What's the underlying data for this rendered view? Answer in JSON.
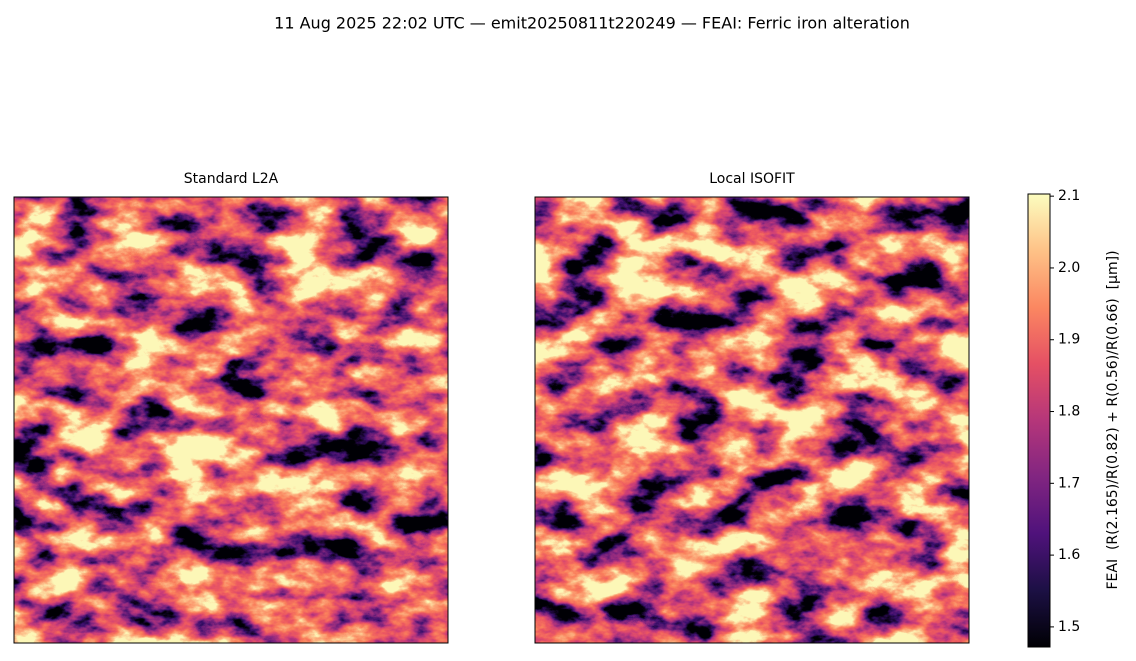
{
  "chart_data": {
    "type": "image",
    "title": "11 Aug 2025 22:02 UTC — emit20250811t220249 — FEAI: Ferric iron alteration",
    "panels": [
      {
        "title": "Standard L2A"
      },
      {
        "title": "Local ISOFIT"
      }
    ],
    "colorbar": {
      "label": "FEAI  (R(2.165)/R(0.82) + R(0.56)/R(0.66)  [µm])",
      "colormap": "magma",
      "lim": [
        1.472,
        2.103
      ],
      "ticks": [
        1.5,
        1.6,
        1.7,
        1.8,
        1.9,
        {
          "value": 2,
          "label": "2.0"
        },
        2.1
      ]
    }
  }
}
